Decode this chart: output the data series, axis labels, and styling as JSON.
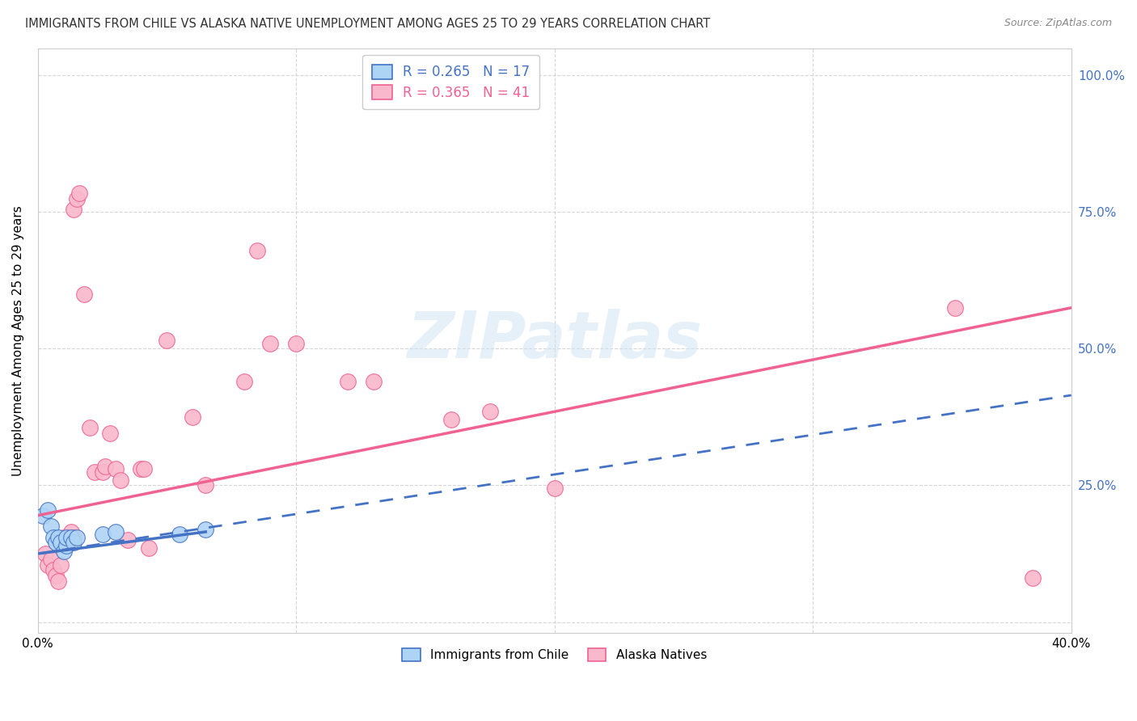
{
  "title": "IMMIGRANTS FROM CHILE VS ALASKA NATIVE UNEMPLOYMENT AMONG AGES 25 TO 29 YEARS CORRELATION CHART",
  "source": "Source: ZipAtlas.com",
  "ylabel": "Unemployment Among Ages 25 to 29 years",
  "xlim": [
    0.0,
    0.4
  ],
  "ylim": [
    -0.02,
    1.05
  ],
  "yticks": [
    0.0,
    0.25,
    0.5,
    0.75,
    1.0
  ],
  "ytick_labels": [
    "",
    "25.0%",
    "50.0%",
    "75.0%",
    "100.0%"
  ],
  "xticks": [
    0.0,
    0.1,
    0.2,
    0.3,
    0.4
  ],
  "xtick_labels": [
    "0.0%",
    "",
    "",
    "",
    "40.0%"
  ],
  "watermark": "ZIPatlas",
  "chile_color": "#aed4f5",
  "alaska_color": "#f9b8cb",
  "chile_line_color": "#4472c4",
  "alaska_line_color": "#f06292",
  "chile_scatter": [
    [
      0.002,
      0.195
    ],
    [
      0.004,
      0.205
    ],
    [
      0.005,
      0.175
    ],
    [
      0.006,
      0.155
    ],
    [
      0.007,
      0.145
    ],
    [
      0.008,
      0.155
    ],
    [
      0.009,
      0.145
    ],
    [
      0.01,
      0.13
    ],
    [
      0.011,
      0.14
    ],
    [
      0.011,
      0.155
    ],
    [
      0.013,
      0.155
    ],
    [
      0.014,
      0.145
    ],
    [
      0.015,
      0.155
    ],
    [
      0.025,
      0.16
    ],
    [
      0.03,
      0.165
    ],
    [
      0.055,
      0.16
    ],
    [
      0.065,
      0.17
    ]
  ],
  "alaska_scatter": [
    [
      0.003,
      0.125
    ],
    [
      0.004,
      0.105
    ],
    [
      0.005,
      0.115
    ],
    [
      0.006,
      0.095
    ],
    [
      0.007,
      0.085
    ],
    [
      0.008,
      0.075
    ],
    [
      0.009,
      0.105
    ],
    [
      0.01,
      0.155
    ],
    [
      0.011,
      0.145
    ],
    [
      0.012,
      0.155
    ],
    [
      0.013,
      0.165
    ],
    [
      0.014,
      0.155
    ],
    [
      0.014,
      0.755
    ],
    [
      0.015,
      0.775
    ],
    [
      0.016,
      0.785
    ],
    [
      0.018,
      0.6
    ],
    [
      0.02,
      0.355
    ],
    [
      0.022,
      0.275
    ],
    [
      0.025,
      0.275
    ],
    [
      0.026,
      0.285
    ],
    [
      0.028,
      0.345
    ],
    [
      0.03,
      0.28
    ],
    [
      0.032,
      0.26
    ],
    [
      0.035,
      0.15
    ],
    [
      0.04,
      0.28
    ],
    [
      0.041,
      0.28
    ],
    [
      0.043,
      0.135
    ],
    [
      0.05,
      0.515
    ],
    [
      0.06,
      0.375
    ],
    [
      0.065,
      0.25
    ],
    [
      0.08,
      0.44
    ],
    [
      0.085,
      0.68
    ],
    [
      0.09,
      0.51
    ],
    [
      0.1,
      0.51
    ],
    [
      0.12,
      0.44
    ],
    [
      0.13,
      0.44
    ],
    [
      0.16,
      0.37
    ],
    [
      0.175,
      0.385
    ],
    [
      0.2,
      0.245
    ],
    [
      0.355,
      0.575
    ],
    [
      0.385,
      0.08
    ]
  ],
  "chile_solid_line": {
    "x0": 0.0,
    "x1": 0.065,
    "y0": 0.125,
    "y1": 0.165
  },
  "chile_dashed_line": {
    "x0": 0.0,
    "x1": 0.4,
    "y0": 0.125,
    "y1": 0.415
  },
  "alaska_solid_line": {
    "x0": 0.0,
    "x1": 0.4,
    "y0": 0.195,
    "y1": 0.575
  }
}
